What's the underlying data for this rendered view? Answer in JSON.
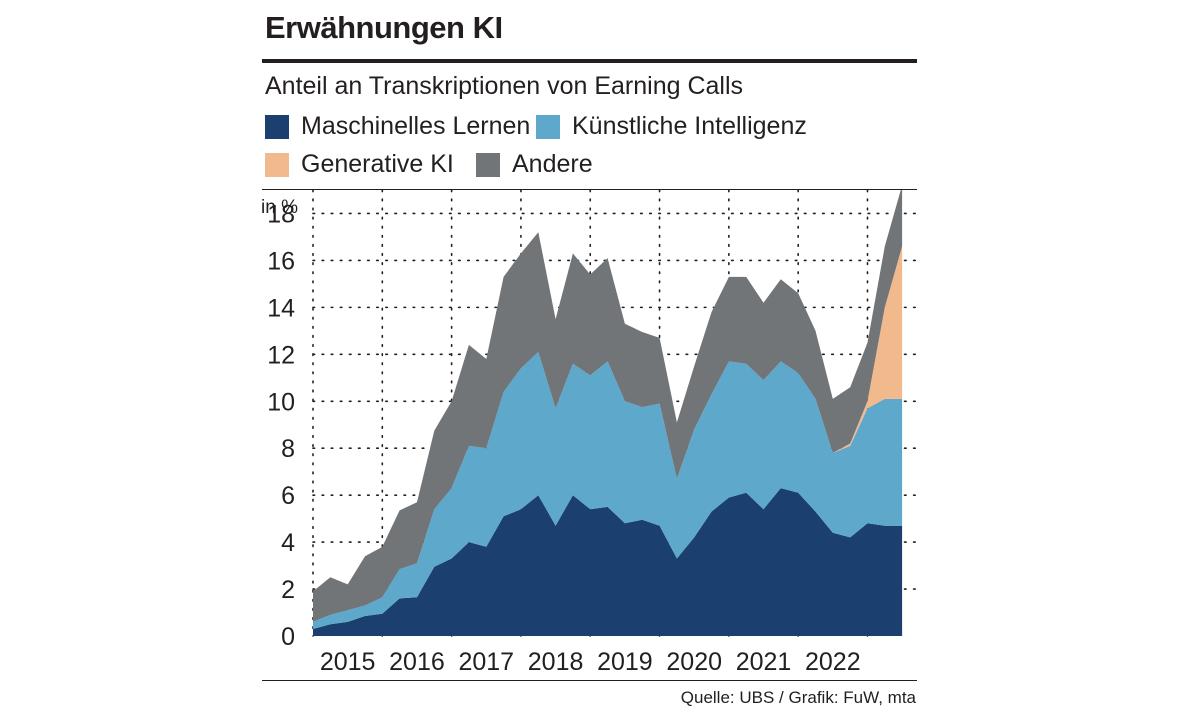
{
  "title": "Erwähnungen KI",
  "subtitle": "Anteil an Transkriptionen von Earning Calls",
  "source": "Quelle: UBS / Grafik: FuW, mta",
  "colors": {
    "ml": "#1b3f6f",
    "ki": "#5ea8cc",
    "gen": "#f2b98c",
    "andere": "#727578"
  },
  "chart_data": {
    "type": "area",
    "stacked": true,
    "title": "Erwähnungen KI",
    "subtitle": "Anteil an Transkriptionen von Earning Calls",
    "unit_label": "in %",
    "ylim": [
      0,
      19
    ],
    "yticks": [
      0,
      2,
      4,
      6,
      8,
      10,
      12,
      14,
      16,
      18
    ],
    "xlim": [
      2014.25,
      2022.95
    ],
    "year_labels": [
      "2015",
      "2016",
      "2017",
      "2018",
      "2019",
      "2020",
      "2021",
      "2022"
    ],
    "year_label_x": [
      2014.75,
      2015.75,
      2016.75,
      2017.75,
      2018.75,
      2019.75,
      2020.75,
      2021.75
    ],
    "vgrid_x": [
      2014.25,
      2015.25,
      2016.25,
      2017.25,
      2018.25,
      2019.25,
      2020.25,
      2021.25,
      2022.25
    ],
    "grid": true,
    "legend": "top",
    "x": [
      2014.25,
      2014.5,
      2014.75,
      2015.0,
      2015.25,
      2015.5,
      2015.75,
      2016.0,
      2016.25,
      2016.5,
      2016.75,
      2017.0,
      2017.25,
      2017.5,
      2017.75,
      2018.0,
      2018.25,
      2018.5,
      2018.75,
      2019.0,
      2019.25,
      2019.5,
      2019.75,
      2020.0,
      2020.25,
      2020.5,
      2020.75,
      2021.0,
      2021.25,
      2021.5,
      2021.75,
      2022.0,
      2022.25,
      2022.5,
      2022.75
    ],
    "series": [
      {
        "name": "Maschinelles Lernen",
        "color_key": "ml",
        "values": [
          0.3,
          0.5,
          0.6,
          0.85,
          0.95,
          1.6,
          1.65,
          2.95,
          3.3,
          4.0,
          3.8,
          5.1,
          5.4,
          6.0,
          4.7,
          6.0,
          5.4,
          5.5,
          4.8,
          4.95,
          4.7,
          3.3,
          4.2,
          5.3,
          5.9,
          6.1,
          5.4,
          6.3,
          6.1,
          5.3,
          4.4,
          4.2,
          4.8,
          4.7,
          4.7
        ]
      },
      {
        "name": "Künstliche Intelligenz",
        "color_key": "ki",
        "values": [
          0.3,
          0.4,
          0.5,
          0.45,
          0.7,
          1.25,
          1.45,
          2.45,
          3.0,
          4.1,
          4.2,
          5.3,
          6.0,
          6.1,
          5.0,
          5.6,
          5.7,
          6.2,
          5.2,
          4.8,
          5.2,
          3.4,
          4.6,
          5.0,
          5.8,
          5.5,
          5.5,
          5.4,
          5.1,
          4.8,
          3.4,
          3.9,
          4.9,
          5.4,
          5.4
        ]
      },
      {
        "name": "Generative KI",
        "color_key": "gen",
        "values": [
          0,
          0,
          0,
          0,
          0,
          0,
          0,
          0,
          0,
          0,
          0,
          0,
          0,
          0,
          0,
          0,
          0,
          0,
          0,
          0,
          0,
          0,
          0,
          0,
          0,
          0,
          0,
          0,
          0,
          0,
          0,
          0.1,
          0.3,
          3.9,
          6.5
        ]
      },
      {
        "name": "Andere",
        "color_key": "andere",
        "values": [
          1.3,
          1.6,
          1.1,
          2.1,
          2.15,
          2.5,
          2.6,
          3.35,
          3.7,
          4.3,
          3.8,
          4.9,
          4.9,
          5.1,
          3.8,
          4.7,
          4.3,
          4.4,
          3.3,
          3.2,
          2.8,
          2.4,
          2.7,
          3.5,
          3.6,
          3.7,
          3.3,
          3.5,
          3.4,
          2.9,
          2.3,
          2.4,
          2.5,
          2.6,
          2.6
        ]
      }
    ]
  }
}
